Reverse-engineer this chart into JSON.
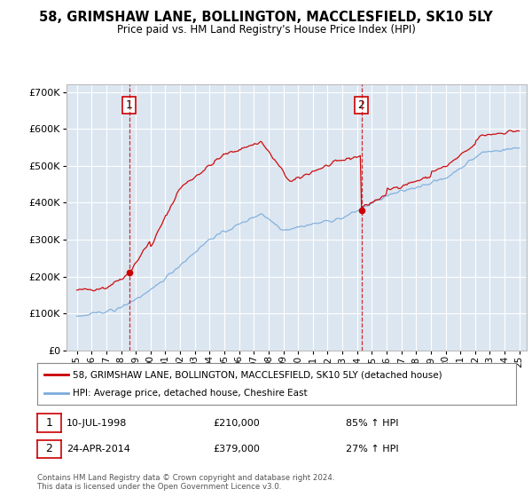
{
  "title_line1": "58, GRIMSHAW LANE, BOLLINGTON, MACCLESFIELD, SK10 5LY",
  "title_line2": "Price paid vs. HM Land Registry's House Price Index (HPI)",
  "bg_color": "#dce6f1",
  "legend_line1": "58, GRIMSHAW LANE, BOLLINGTON, MACCLESFIELD, SK10 5LY (detached house)",
  "legend_line2": "HPI: Average price, detached house, Cheshire East",
  "sale1_date": "10-JUL-1998",
  "sale1_price": 210000,
  "sale1_label": "£210,000",
  "sale1_pct": "85% ↑ HPI",
  "sale2_date": "24-APR-2014",
  "sale2_price": 379000,
  "sale2_label": "£379,000",
  "sale2_pct": "27% ↑ HPI",
  "footer": "Contains HM Land Registry data © Crown copyright and database right 2024.\nThis data is licensed under the Open Government Licence v3.0.",
  "red_color": "#cc0000",
  "blue_color": "#7aacdb",
  "sale1_year": 1998.54,
  "sale2_year": 2014.29,
  "ylim_max": 700000,
  "xlabel_start": 1995,
  "xlabel_end": 2025
}
